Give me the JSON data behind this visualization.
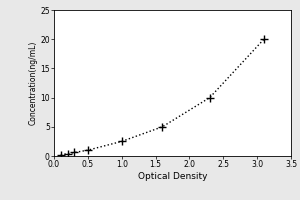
{
  "x_data": [
    0.1,
    0.2,
    0.3,
    0.5,
    1.0,
    1.6,
    2.3,
    3.1
  ],
  "y_data": [
    0.2,
    0.4,
    0.6,
    1.0,
    2.5,
    5.0,
    10.0,
    20.0
  ],
  "xlabel": "Optical Density",
  "ylabel": "Concentration(ng/mL)",
  "xlim": [
    0,
    3.5
  ],
  "ylim": [
    0,
    25
  ],
  "xticks": [
    0,
    0.5,
    1.0,
    1.5,
    2.0,
    2.5,
    3.0,
    3.5
  ],
  "yticks": [
    0,
    5,
    10,
    15,
    20,
    25
  ],
  "marker": "+",
  "marker_color": "black",
  "line_style": "dotted",
  "line_color": "black",
  "marker_size": 6,
  "figure_bg": "#e8e8e8",
  "axes_bg": "white",
  "tick_fontsize": 5.5,
  "label_fontsize": 6.5,
  "ylabel_fontsize": 5.5
}
